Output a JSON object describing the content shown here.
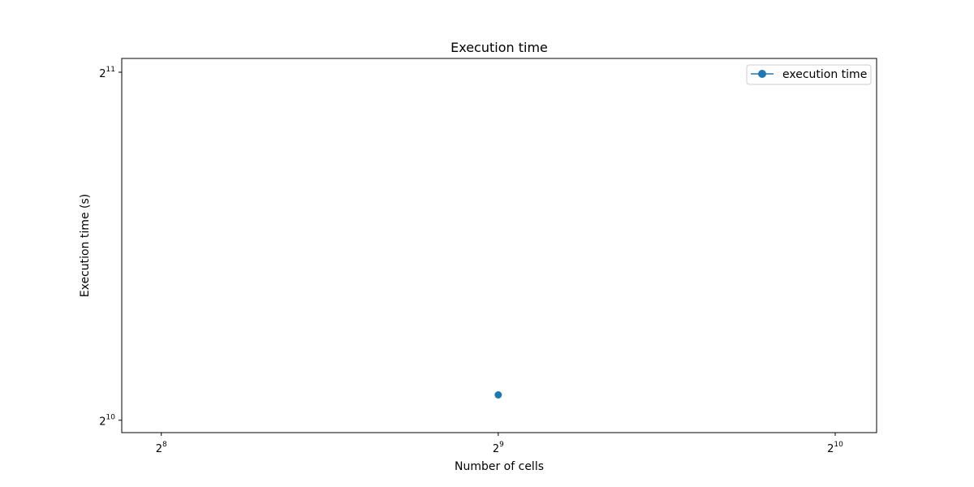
{
  "chart_data": {
    "type": "line",
    "title": "Execution time",
    "xlabel": "Number of cells",
    "ylabel": "Execution time (s)",
    "x_scale": "log2",
    "y_scale": "log2",
    "xlim": [
      236,
      1115
    ],
    "ylim": [
      999,
      2105
    ],
    "x_ticks": [
      {
        "value": 256,
        "base": "2",
        "exp": "8"
      },
      {
        "value": 512,
        "base": "2",
        "exp": "9"
      },
      {
        "value": 1024,
        "base": "2",
        "exp": "10"
      }
    ],
    "y_ticks": [
      {
        "value": 1024,
        "base": "2",
        "exp": "10"
      },
      {
        "value": 2048,
        "base": "2",
        "exp": "11"
      }
    ],
    "series": [
      {
        "name": "execution time",
        "color": "#1f77b4",
        "marker": "circle",
        "x": [
          512
        ],
        "y": [
          1077
        ]
      }
    ],
    "grid": false,
    "legend_position": "upper right"
  }
}
